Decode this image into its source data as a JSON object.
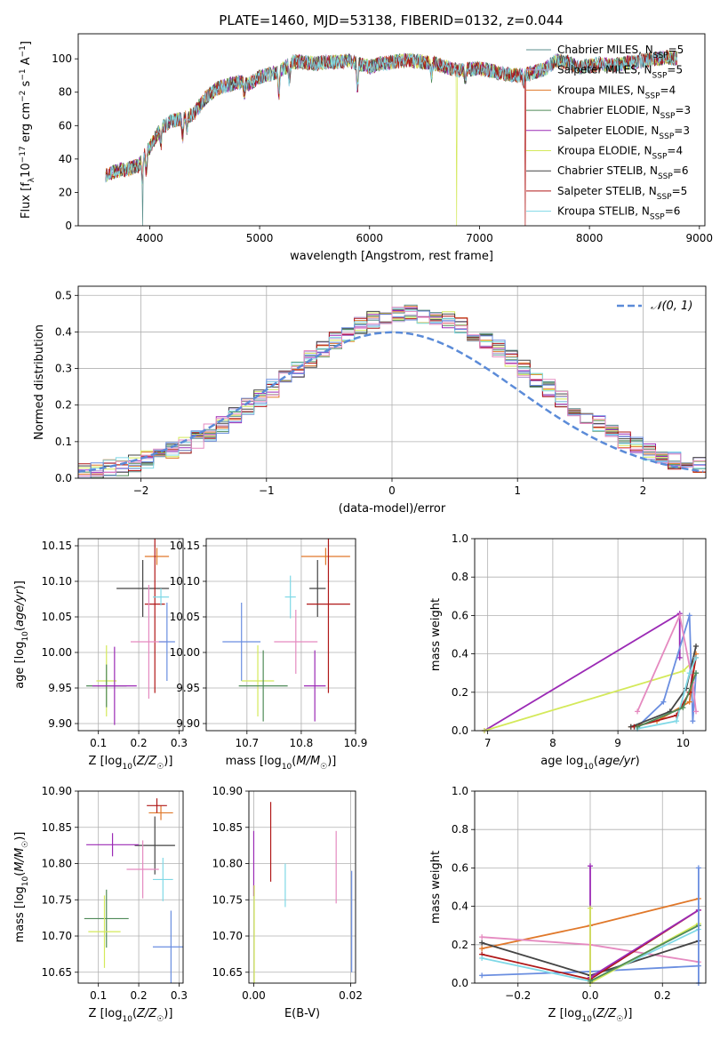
{
  "figure": {
    "title": "PLATE=1460, MJD=53138, FIBERID=0132, z=0.044"
  },
  "colors": {
    "Chabrier MILES": "#5b8f8c",
    "Salpeter MILES": "#b49fd8",
    "Kroupa MILES": "#e0782a",
    "Chabrier ELODIE": "#4f8a58",
    "Salpeter ELODIE": "#9b2ab5",
    "Kroupa ELODIE": "#d4e95a",
    "Chabrier STELIB": "#444444",
    "Salpeter STELIB": "#b01818",
    "Kroupa STELIB": "#7fd8e6",
    "blue": "#6a8ee0",
    "pink": "#e58ac0",
    "gaussian": "#5b8bd8"
  },
  "chart_data": [
    {
      "id": "spectrum",
      "type": "line",
      "xlabel": "wavelength [Angstrom, rest frame]",
      "ylabel": "Flux [f_λ 10^-17 erg cm^-2 s^-1 A^-1]",
      "xlim": [
        3350,
        9050
      ],
      "ylim": [
        0,
        115
      ],
      "xticks": [
        4000,
        5000,
        6000,
        7000,
        8000,
        9000
      ],
      "yticks": [
        0,
        20,
        40,
        60,
        80,
        100
      ],
      "grid": false,
      "legend_position": "upper-right",
      "legend": [
        {
          "label": "Chabrier MILES, N",
          "sub": "SSP",
          "tail": "=5"
        },
        {
          "label": "Salpeter MILES, N",
          "sub": "SSP",
          "tail": "=5"
        },
        {
          "label": "Kroupa MILES, N",
          "sub": "SSP",
          "tail": "=4"
        },
        {
          "label": "Chabrier ELODIE, N",
          "sub": "SSP",
          "tail": "=3"
        },
        {
          "label": "Salpeter ELODIE, N",
          "sub": "SSP",
          "tail": "=3"
        },
        {
          "label": "Kroupa ELODIE, N",
          "sub": "SSP",
          "tail": "=4"
        },
        {
          "label": "Chabrier STELIB, N",
          "sub": "SSP",
          "tail": "=6"
        },
        {
          "label": "Salpeter STELIB, N",
          "sub": "SSP",
          "tail": "=5"
        },
        {
          "label": "Kroupa STELIB, N",
          "sub": "SSP",
          "tail": "=6"
        }
      ],
      "continuum": [
        [
          3600,
          30
        ],
        [
          3700,
          33
        ],
        [
          3800,
          34
        ],
        [
          3900,
          36
        ],
        [
          4000,
          47
        ],
        [
          4100,
          58
        ],
        [
          4200,
          63
        ],
        [
          4300,
          64
        ],
        [
          4400,
          67
        ],
        [
          4500,
          76
        ],
        [
          4600,
          82
        ],
        [
          4700,
          84
        ],
        [
          4800,
          86
        ],
        [
          4900,
          85
        ],
        [
          5000,
          89
        ],
        [
          5100,
          91
        ],
        [
          5200,
          93
        ],
        [
          5300,
          98
        ],
        [
          5400,
          98
        ],
        [
          5500,
          97
        ],
        [
          5600,
          98
        ],
        [
          5700,
          98
        ],
        [
          5800,
          99
        ],
        [
          5900,
          97
        ],
        [
          6000,
          95
        ],
        [
          6100,
          97
        ],
        [
          6200,
          98
        ],
        [
          6300,
          99
        ],
        [
          6400,
          99
        ],
        [
          6500,
          98
        ],
        [
          6600,
          97
        ],
        [
          6700,
          95
        ],
        [
          6800,
          93
        ],
        [
          6900,
          94
        ],
        [
          7000,
          94
        ],
        [
          7100,
          93
        ],
        [
          7200,
          91
        ],
        [
          7300,
          90
        ],
        [
          7400,
          90
        ],
        [
          7500,
          92
        ],
        [
          7600,
          94
        ],
        [
          7700,
          99
        ],
        [
          7800,
          98
        ],
        [
          7900,
          95
        ],
        [
          8000,
          96
        ],
        [
          8100,
          97
        ],
        [
          8200,
          96
        ],
        [
          8300,
          97
        ],
        [
          8400,
          98
        ],
        [
          8500,
          99
        ],
        [
          8600,
          100
        ],
        [
          8700,
          101
        ],
        [
          8800,
          100
        ]
      ],
      "dips": [
        [
          3934,
          16
        ],
        [
          3969,
          12
        ],
        [
          4102,
          10
        ],
        [
          4300,
          12
        ],
        [
          4340,
          8
        ],
        [
          4861,
          8
        ],
        [
          5175,
          16
        ],
        [
          5270,
          10
        ],
        [
          5890,
          18
        ],
        [
          6563,
          8
        ],
        [
          6870,
          8
        ],
        [
          7400,
          6
        ]
      ],
      "drops": [
        {
          "series": "Chabrier MILES",
          "x": 3935
        },
        {
          "series": "Kroupa ELODIE",
          "x": 6790
        },
        {
          "series": "Salpeter STELIB",
          "x": 7415
        }
      ]
    },
    {
      "id": "residuals",
      "type": "histogram",
      "xlabel": "(data-model)/error",
      "ylabel": "Normed distribution",
      "xlim": [
        -2.5,
        2.5
      ],
      "ylim": [
        0,
        0.525
      ],
      "xticks": [
        -2,
        -1,
        0,
        1,
        2
      ],
      "yticks": [
        0.0,
        0.1,
        0.2,
        0.3,
        0.4,
        0.5
      ],
      "grid": true,
      "legend_position": "upper-right",
      "legend": [
        {
          "label": "𝒩(0, 1)"
        }
      ],
      "bin_width": 0.1,
      "gaussian": {
        "mean": 0,
        "sigma": 1,
        "peak": 0.399
      }
    },
    {
      "id": "age-vs-Z",
      "type": "errorbar",
      "xlabel": "Z [log10(Z/Z☉)]",
      "ylabel": "age [log10(age/yr)]",
      "xlim": [
        0.05,
        0.31
      ],
      "ylim": [
        9.89,
        10.16
      ],
      "xticks": [
        0.1,
        0.2,
        0.3
      ],
      "yticks": [
        9.9,
        9.95,
        10.0,
        10.05,
        10.1,
        10.15
      ],
      "points": [
        {
          "color": "Kroupa MILES",
          "x": 0.245,
          "xerr": 0.03,
          "y": 10.135,
          "yerr": 0.012
        },
        {
          "color": "Chabrier STELIB",
          "x": 0.21,
          "xerr": 0.065,
          "y": 10.09,
          "yerr": 0.04
        },
        {
          "color": "Salpeter STELIB",
          "x": 0.24,
          "xerr": 0.025,
          "y": 10.068,
          "yerr": 0.125
        },
        {
          "color": "Kroupa STELIB",
          "x": 0.255,
          "xerr": 0.02,
          "y": 10.078,
          "yerr": 0.012
        },
        {
          "color": "pink",
          "x": 0.225,
          "xerr": 0.045,
          "y": 10.015,
          "yerr": 0.08
        },
        {
          "color": "blue",
          "x": 0.27,
          "xerr": 0.02,
          "y": 10.015,
          "yerr": 0.055
        },
        {
          "color": "Kroupa ELODIE",
          "x": 0.12,
          "xerr": 0.025,
          "y": 9.96,
          "yerr": 0.05
        },
        {
          "color": "Chabrier ELODIE",
          "x": 0.12,
          "xerr": 0.05,
          "y": 9.953,
          "yerr": 0.03
        },
        {
          "color": "Salpeter ELODIE",
          "x": 0.14,
          "xerr": 0.055,
          "y": 9.953,
          "yerr": 0.055
        }
      ]
    },
    {
      "id": "age-vs-mass",
      "type": "errorbar",
      "xlabel": "mass [log10(M/M☉)]",
      "ylabel": "",
      "xlim": [
        10.625,
        10.9
      ],
      "ylim": [
        9.89,
        10.16
      ],
      "xticks": [
        10.7,
        10.8,
        10.9
      ],
      "yticks": [
        9.9,
        9.95,
        10.0,
        10.05,
        10.1,
        10.15
      ],
      "points": [
        {
          "color": "Kroupa MILES",
          "x": 10.845,
          "xerr": 0.045,
          "y": 10.135,
          "yerr": 0.012
        },
        {
          "color": "Chabrier STELIB",
          "x": 10.83,
          "xerr": 0.015,
          "y": 10.09,
          "yerr": 0.04
        },
        {
          "color": "Salpeter STELIB",
          "x": 10.85,
          "xerr": 0.04,
          "y": 10.068,
          "yerr": 0.125
        },
        {
          "color": "Kroupa STELIB",
          "x": 10.78,
          "xerr": 0.01,
          "y": 10.078,
          "yerr": 0.03
        },
        {
          "color": "pink",
          "x": 10.79,
          "xerr": 0.04,
          "y": 10.015,
          "yerr": 0.045
        },
        {
          "color": "blue",
          "x": 10.69,
          "xerr": 0.035,
          "y": 10.015,
          "yerr": 0.055
        },
        {
          "color": "Kroupa ELODIE",
          "x": 10.72,
          "xerr": 0.03,
          "y": 9.96,
          "yerr": 0.05
        },
        {
          "color": "Chabrier ELODIE",
          "x": 10.73,
          "xerr": 0.045,
          "y": 9.953,
          "yerr": 0.05
        },
        {
          "color": "Salpeter ELODIE",
          "x": 10.825,
          "xerr": 0.02,
          "y": 9.953,
          "yerr": 0.05
        }
      ]
    },
    {
      "id": "weight-vs-age",
      "type": "line",
      "xlabel": "age log10(age/yr)",
      "ylabel": "mass weight",
      "xlim": [
        6.8,
        10.35
      ],
      "ylim": [
        0,
        1.0
      ],
      "xticks": [
        7,
        8,
        9,
        10
      ],
      "yticks": [
        0.0,
        0.2,
        0.4,
        0.6,
        0.8,
        1.0
      ],
      "series": [
        {
          "color": "Salpeter ELODIE",
          "x": [
            6.95,
            9.95,
            9.95
          ],
          "y": [
            0.0,
            0.61,
            0.38
          ]
        },
        {
          "color": "Kroupa ELODIE",
          "x": [
            6.95,
            10.0,
            10.15
          ],
          "y": [
            0.0,
            0.31,
            0.36
          ]
        },
        {
          "color": "blue",
          "x": [
            9.3,
            9.7,
            10.1,
            10.15,
            10.2
          ],
          "y": [
            0.02,
            0.15,
            0.6,
            0.05,
            0.3
          ]
        },
        {
          "color": "pink",
          "x": [
            9.3,
            9.95,
            10.15,
            10.2
          ],
          "y": [
            0.1,
            0.6,
            0.25,
            0.1
          ]
        },
        {
          "color": "Kroupa MILES",
          "x": [
            9.2,
            9.6,
            10.1,
            10.2
          ],
          "y": [
            0.02,
            0.05,
            0.15,
            0.4
          ]
        },
        {
          "color": "Chabrier STELIB",
          "x": [
            9.2,
            9.8,
            10.05,
            10.2
          ],
          "y": [
            0.02,
            0.1,
            0.22,
            0.44
          ]
        },
        {
          "color": "Salpeter STELIB",
          "x": [
            9.25,
            9.9,
            10.1,
            10.2
          ],
          "y": [
            0.02,
            0.08,
            0.2,
            0.38
          ]
        },
        {
          "color": "Kroupa STELIB",
          "x": [
            9.3,
            9.9,
            10.1,
            10.2
          ],
          "y": [
            0.01,
            0.05,
            0.3,
            0.38
          ]
        },
        {
          "color": "Chabrier ELODIE",
          "x": [
            9.3,
            10.0,
            10.2
          ],
          "y": [
            0.02,
            0.12,
            0.3
          ]
        }
      ]
    },
    {
      "id": "mass-vs-Z",
      "type": "errorbar",
      "xlabel": "Z [log10(Z/Z☉)]",
      "ylabel": "mass [log10(M/M☉)]",
      "xlim": [
        0.05,
        0.31
      ],
      "ylim": [
        10.635,
        10.9
      ],
      "xticks": [
        0.1,
        0.2,
        0.3
      ],
      "yticks": [
        10.65,
        10.7,
        10.75,
        10.8,
        10.85,
        10.9
      ],
      "points": [
        {
          "color": "Kroupa MILES",
          "x": 0.255,
          "xerr": 0.03,
          "y": 10.87,
          "yerr": 0.01
        },
        {
          "color": "Salpeter STELIB",
          "x": 0.245,
          "xerr": 0.025,
          "y": 10.88,
          "yerr": 0.01
        },
        {
          "color": "Chabrier STELIB",
          "x": 0.24,
          "xerr": 0.05,
          "y": 10.825,
          "yerr": 0.04
        },
        {
          "color": "Salpeter ELODIE",
          "x": 0.135,
          "xerr": 0.065,
          "y": 10.826,
          "yerr": 0.016
        },
        {
          "color": "pink",
          "x": 0.21,
          "xerr": 0.04,
          "y": 10.792,
          "yerr": 0.04
        },
        {
          "color": "Kroupa STELIB",
          "x": 0.26,
          "xerr": 0.025,
          "y": 10.778,
          "yerr": 0.03
        },
        {
          "color": "Chabrier ELODIE",
          "x": 0.12,
          "xerr": 0.055,
          "y": 10.724,
          "yerr": 0.04
        },
        {
          "color": "Kroupa ELODIE",
          "x": 0.115,
          "xerr": 0.04,
          "y": 10.706,
          "yerr": 0.05
        },
        {
          "color": "blue",
          "x": 0.28,
          "xerr": 0.045,
          "y": 10.685,
          "yerr": 0.05
        }
      ]
    },
    {
      "id": "mass-vs-EBV",
      "type": "errorbar",
      "xlabel": "E(B-V)",
      "ylabel": "",
      "xlim": [
        -0.001,
        0.021
      ],
      "ylim": [
        10.635,
        10.9
      ],
      "xticks": [
        0.0,
        0.02
      ],
      "yticks": [
        10.65,
        10.7,
        10.75,
        10.8,
        10.85,
        10.9
      ],
      "points": [
        {
          "color": "Salpeter STELIB",
          "x": 0.0035,
          "yerr": 0.055,
          "y": 10.83
        },
        {
          "color": "Salpeter ELODIE",
          "x": 0.0,
          "yerr": 0.045,
          "y": 10.8
        },
        {
          "color": "Kroupa ELODIE",
          "x": 0.0001,
          "yerr": 0.07,
          "y": 10.7
        },
        {
          "color": "Kroupa STELIB",
          "x": 0.0065,
          "yerr": 0.03,
          "y": 10.77
        },
        {
          "color": "pink",
          "x": 0.017,
          "yerr": 0.05,
          "y": 10.795
        },
        {
          "color": "blue",
          "x": 0.0202,
          "yerr": 0.07,
          "y": 10.72
        }
      ]
    },
    {
      "id": "weight-vs-Z",
      "type": "line",
      "xlabel": "Z [log10(Z/Z☉)]",
      "ylabel": "mass weight",
      "xlim": [
        -0.32,
        0.32
      ],
      "ylim": [
        0,
        1.0
      ],
      "xticks": [
        -0.2,
        0.0,
        0.2
      ],
      "yticks": [
        0.0,
        0.2,
        0.4,
        0.6,
        0.8,
        1.0
      ],
      "series": [
        {
          "color": "Kroupa MILES",
          "x": [
            -0.3,
            0.0,
            0.3
          ],
          "y": [
            0.18,
            0.3,
            0.44
          ]
        },
        {
          "color": "pink",
          "x": [
            -0.3,
            0.0,
            0.3
          ],
          "y": [
            0.24,
            0.2,
            0.11
          ]
        },
        {
          "color": "blue",
          "x": [
            -0.3,
            0.0,
            0.3
          ],
          "y": [
            0.04,
            0.06,
            0.09
          ]
        },
        {
          "color": "Chabrier STELIB",
          "x": [
            -0.3,
            0.0,
            0.3
          ],
          "y": [
            0.21,
            0.04,
            0.22
          ]
        },
        {
          "color": "Salpeter STELIB",
          "x": [
            -0.3,
            0.0,
            0.3
          ],
          "y": [
            0.15,
            0.02,
            0.38
          ]
        },
        {
          "color": "Kroupa STELIB",
          "x": [
            -0.3,
            0.0,
            0.3
          ],
          "y": [
            0.13,
            0.01,
            0.28
          ]
        },
        {
          "color": "Salpeter ELODIE",
          "x": [
            0.0,
            0.0,
            0.3
          ],
          "y": [
            0.61,
            0.03,
            0.38
          ]
        },
        {
          "color": "Kroupa ELODIE",
          "x": [
            0.0,
            0.0,
            0.3
          ],
          "y": [
            0.39,
            0.0,
            0.31
          ]
        },
        {
          "color": "Chabrier ELODIE",
          "x": [
            0.0,
            0.3
          ],
          "y": [
            0.01,
            0.3
          ]
        },
        {
          "color": "blue",
          "x": [
            0.3,
            0.3
          ],
          "y": [
            0.0,
            0.6
          ]
        }
      ]
    }
  ]
}
